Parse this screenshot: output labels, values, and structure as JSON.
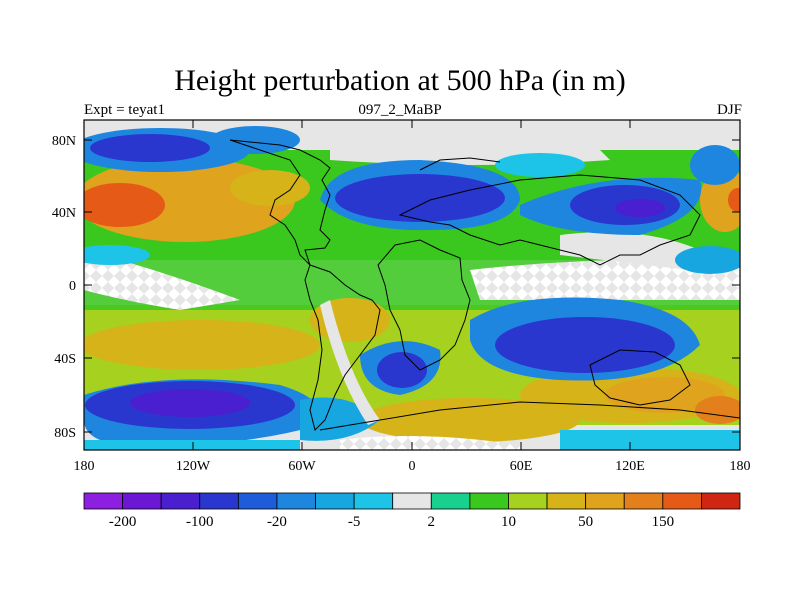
{
  "title": "Height perturbation at 500 hPa (in m)",
  "subtitle_left": "Expt = teyat1",
  "subtitle_center": "097_2_MaBP",
  "subtitle_right": "DJF",
  "y_ticks": [
    "80N",
    "40N",
    "0",
    "40S",
    "80S"
  ],
  "x_ticks": [
    "180",
    "120W",
    "60W",
    "0",
    "60E",
    "120E",
    "180"
  ],
  "colorbar": {
    "colors": [
      "#8c1fe0",
      "#6a17d6",
      "#4a1fcf",
      "#2a37cf",
      "#1f5cd9",
      "#1f86e0",
      "#17a6e0",
      "#1ec3e8",
      "#e6e6e6",
      "#19d18f",
      "#3ac81e",
      "#a6d11e",
      "#d6b419",
      "#e0a31e",
      "#e3801c",
      "#e65a17",
      "#d12514"
    ],
    "labels": [
      "-200",
      "-100",
      "-20",
      "-5",
      "2",
      "10",
      "50",
      "150"
    ]
  },
  "legend_colors": {
    "white_gap": "#e6e6e6",
    "continent_outline": "#000000"
  }
}
